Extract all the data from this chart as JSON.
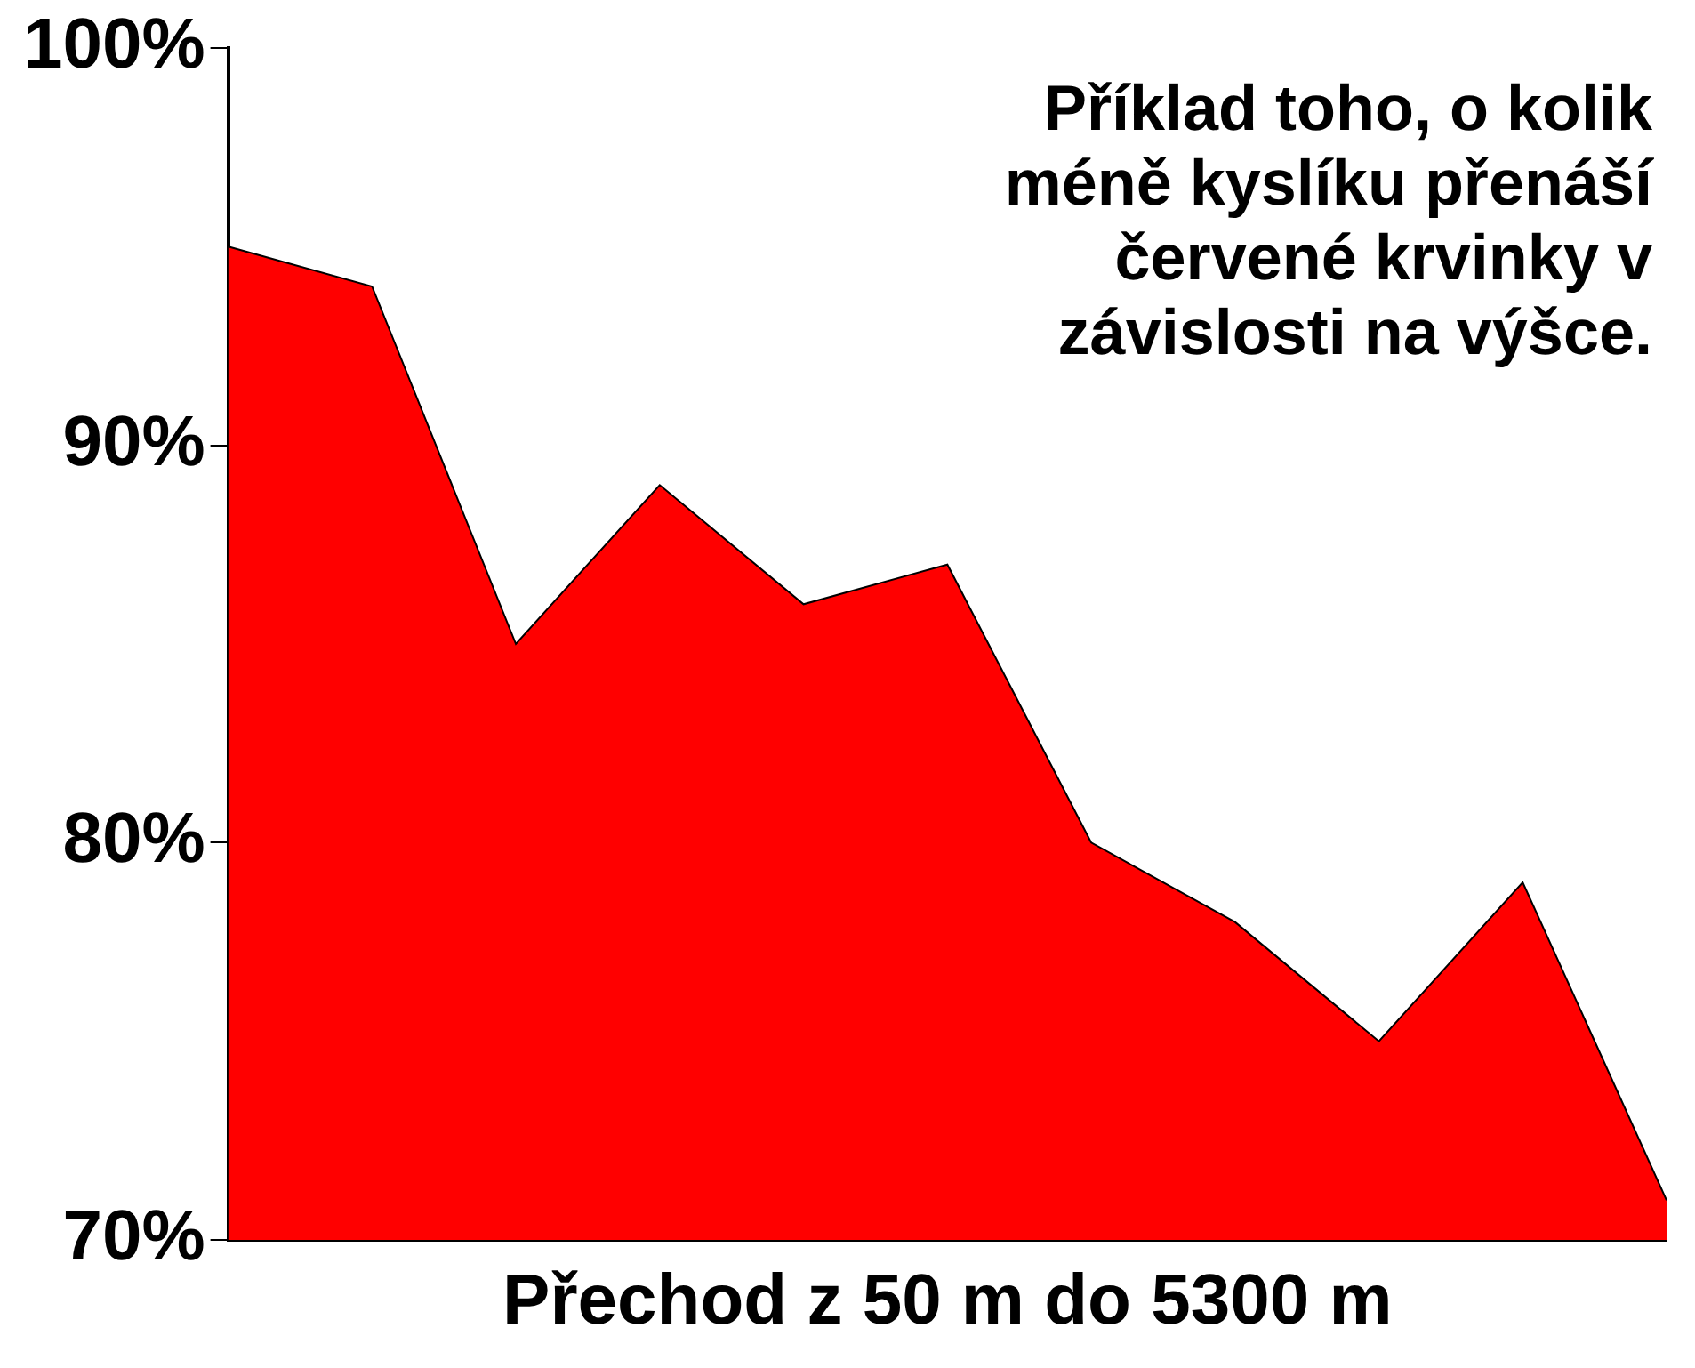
{
  "chart_data": {
    "type": "area",
    "xlabel": "Přechod z 50 m do 5300 m",
    "annotations": [
      "Příklad toho, o kolik méně kyslíku přenáší červené krvinky v závislosti na výšce."
    ],
    "categories": [
      null,
      null,
      null,
      null,
      null,
      null,
      null,
      null,
      null,
      null,
      null
    ],
    "series": [
      {
        "color": "#ff0000",
        "values": [
          95,
          94,
          85,
          89,
          86,
          87,
          80,
          78,
          75,
          79,
          71
        ]
      }
    ],
    "ylim": [
      70,
      100
    ],
    "yticks": [
      {
        "value": 70,
        "label": "70%"
      },
      {
        "value": 80,
        "label": "80%"
      },
      {
        "value": 90,
        "label": "90%"
      },
      {
        "value": 100,
        "label": "100%"
      }
    ],
    "grid": false,
    "legend": false
  }
}
